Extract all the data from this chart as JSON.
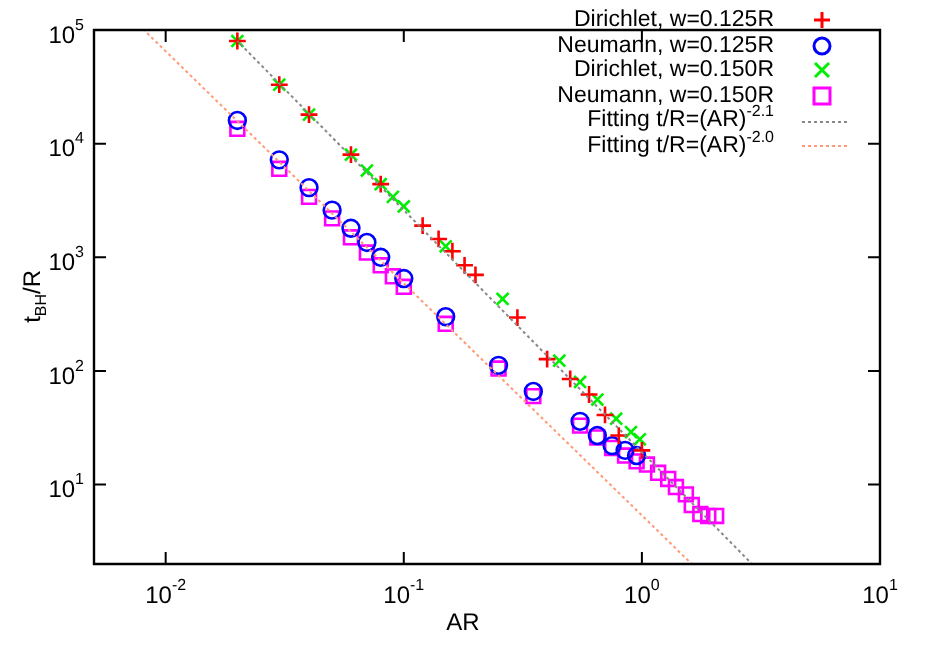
{
  "chart_data": {
    "type": "scatter",
    "xlabel": "AR",
    "ylabel": "t$_{BH}$/R",
    "log": "xy",
    "xlim": [
      0.005,
      10
    ],
    "xticks": [
      {
        "value": 0.01,
        "label": "10$^{-2}$"
      },
      {
        "value": 0.1,
        "label": "10$^{-1}$"
      },
      {
        "value": 1,
        "label": "10$^{0}$"
      },
      {
        "value": 10,
        "label": "10$^{1}$"
      }
    ],
    "ylim": [
      2,
      100000
    ],
    "yticks": [
      {
        "value": 10,
        "label": "10$^{1}$"
      },
      {
        "value": 100,
        "label": "10$^{2}$"
      },
      {
        "value": 1000,
        "label": "10$^{3}$"
      },
      {
        "value": 10000,
        "label": "10$^{4}$"
      },
      {
        "value": 100000,
        "label": "10$^{5}$"
      }
    ],
    "grid": false,
    "legend": "top right",
    "series": [
      {
        "name": "Dirichlet, w=0.125R",
        "color": "#ff0000",
        "marker": "plus",
        "x": [
          0.02,
          0.03,
          0.04,
          0.06,
          0.08,
          0.12,
          0.14,
          0.16,
          0.18,
          0.2,
          0.3,
          0.4,
          0.5,
          0.6,
          0.7,
          0.8,
          1.0
        ],
        "values": [
          80000,
          33000,
          18000,
          8000,
          4400,
          1900,
          1450,
          1130,
          850,
          700,
          295,
          127,
          85,
          62,
          41,
          27,
          20
        ]
      },
      {
        "name": "Neumann, w=0.125R",
        "color": "#0000ff",
        "marker": "circle",
        "x": [
          0.02,
          0.03,
          0.04,
          0.05,
          0.06,
          0.07,
          0.08,
          0.1,
          0.15,
          0.25,
          0.35,
          0.55,
          0.65,
          0.75,
          0.85,
          0.95
        ],
        "values": [
          16000,
          7200,
          4100,
          2600,
          1800,
          1350,
          1000,
          650,
          300,
          112,
          66,
          36,
          27,
          22,
          20,
          18
        ]
      },
      {
        "name": "Dirichlet, w=0.150R",
        "color": "#00ee00",
        "marker": "cross",
        "x": [
          0.02,
          0.03,
          0.04,
          0.06,
          0.07,
          0.08,
          0.09,
          0.1,
          0.15,
          0.26,
          0.45,
          0.55,
          0.65,
          0.78,
          0.9,
          0.98
        ],
        "values": [
          80000,
          33000,
          18000,
          8000,
          5800,
          4400,
          3400,
          2800,
          1250,
          430,
          123,
          80,
          56,
          38,
          29,
          25
        ]
      },
      {
        "name": "Neumann, w=0.150R",
        "color": "#ff00ff",
        "marker": "square",
        "x": [
          0.02,
          0.03,
          0.04,
          0.05,
          0.06,
          0.07,
          0.08,
          0.09,
          0.1,
          0.15,
          0.25,
          0.35,
          0.55,
          0.65,
          0.75,
          0.85,
          0.95,
          1.05,
          1.17,
          1.29,
          1.39,
          1.53,
          1.62,
          1.76,
          1.9,
          2.05
        ],
        "values": [
          13500,
          6000,
          3400,
          2200,
          1500,
          1100,
          850,
          680,
          550,
          260,
          105,
          60,
          33,
          26,
          21,
          18,
          16,
          15,
          12.7,
          11.2,
          9.5,
          8.2,
          6.6,
          5.5,
          5.3,
          5.3
        ]
      },
      {
        "name": "Fitting t/R=(AR)$^{-2.1}$",
        "type": "line",
        "color": "#888888",
        "marker": "none",
        "line_style": "dotted",
        "x": [
          0.02,
          2.9
        ],
        "values": [
          80000,
          2
        ]
      },
      {
        "name": "Fitting t/R=(AR)$^{-2.0}$",
        "type": "line",
        "color": "#ff9977",
        "marker": "none",
        "line_style": "dotted",
        "x": [
          0.0081,
          1.62
        ],
        "values": [
          100000,
          2
        ]
      }
    ]
  }
}
